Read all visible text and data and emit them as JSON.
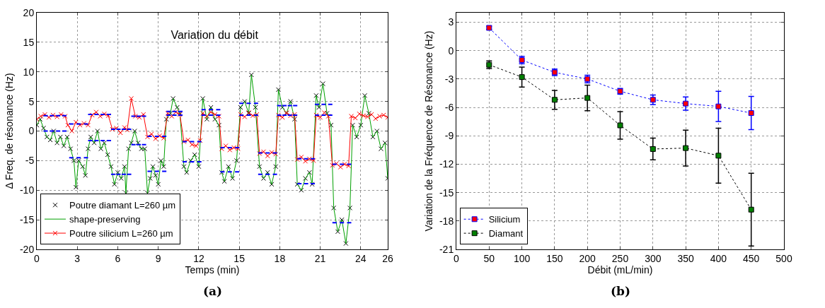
{
  "chart_data": [
    {
      "type": "scatter",
      "title": "Variation du débit",
      "xlabel": "Temps (min)",
      "ylabel": "Δ Freq. de résonance (Hz)",
      "annotations": [
        "(a)"
      ],
      "xlim": [
        0,
        26
      ],
      "xticks": [
        0,
        3,
        6,
        9,
        12,
        15,
        18,
        21,
        24,
        26
      ],
      "ylim": [
        -20,
        20
      ],
      "yticks": [
        -20,
        -15,
        -10,
        -5,
        0,
        5,
        10,
        15,
        20
      ],
      "grid": true,
      "legend": "bottom left",
      "series": [
        {
          "name": "Poutre diamant L=260 µm",
          "marker": "cross",
          "color": "#000000",
          "x": [
            0,
            0.25,
            0.5,
            0.75,
            1,
            1.25,
            1.5,
            1.75,
            2,
            2.25,
            2.5,
            2.75,
            2.9,
            3.1,
            3.4,
            3.6,
            3.8,
            4,
            4.25,
            4.5,
            4.75,
            5,
            5.25,
            5.5,
            5.75,
            6,
            6.25,
            6.5,
            6.6,
            6.8,
            7,
            7.25,
            7.5,
            7.75,
            8,
            8.2,
            8.4,
            8.6,
            8.8,
            9,
            9.2,
            9.4,
            9.6,
            9.9,
            10.1,
            10.4,
            10.6,
            10.9,
            11.1,
            11.4,
            11.7,
            12,
            12.3,
            12.6,
            12.9,
            13.2,
            13.5,
            13.7,
            13.9,
            14.2,
            14.5,
            14.8,
            15.1,
            15.4,
            15.7,
            15.9,
            16.2,
            16.5,
            16.8,
            17.1,
            17.4,
            17.7,
            17.9,
            18.2,
            18.5,
            18.8,
            19.1,
            19.3,
            19.6,
            19.9,
            20.2,
            20.4,
            20.7,
            20.9,
            21.2,
            21.5,
            21.8,
            22,
            22.3,
            22.6,
            22.9,
            23.2,
            23.4,
            23.7,
            24,
            24.3,
            24.6,
            24.9,
            25.2,
            25.5,
            25.8,
            26
          ],
          "values": [
            1,
            2,
            0.5,
            -1,
            -1.5,
            0,
            -2,
            -1,
            -2.5,
            -1,
            -3,
            -5,
            -9.5,
            -5,
            -6,
            -7.5,
            -3,
            -1,
            -2,
            0,
            -3,
            -2,
            -4,
            -6,
            -9,
            -7,
            -8,
            -6,
            -10.5,
            -3,
            -2,
            0,
            -2,
            -3,
            -3,
            -10.5,
            -8,
            -6,
            -7.5,
            -9,
            -5,
            -6,
            2,
            3,
            5.5,
            4,
            3,
            -6,
            -7,
            -5,
            -4,
            -6,
            5.5,
            2,
            4,
            2,
            1,
            -7,
            -8.5,
            -6,
            -8,
            -5,
            4,
            5,
            3,
            9.5,
            4,
            -6,
            -8,
            -7,
            -9,
            -6,
            7,
            4,
            3,
            5,
            2,
            -9,
            -10,
            -8,
            -7,
            -9,
            6,
            4,
            8,
            3,
            1,
            -13,
            -17,
            -15,
            -19,
            -13,
            1,
            -1,
            1,
            6,
            3,
            -1,
            0,
            -3,
            -2,
            -8
          ]
        },
        {
          "name": "shape-preserving",
          "type": "line",
          "marker": "none",
          "line_style": "solid",
          "color": "#00a000",
          "x": [
            0,
            0.25,
            0.5,
            0.75,
            1,
            1.25,
            1.5,
            1.75,
            2,
            2.25,
            2.5,
            2.75,
            2.9,
            3.1,
            3.4,
            3.6,
            3.8,
            4,
            4.25,
            4.5,
            4.75,
            5,
            5.25,
            5.5,
            5.75,
            6,
            6.25,
            6.5,
            6.6,
            6.8,
            7,
            7.25,
            7.5,
            7.75,
            8,
            8.2,
            8.4,
            8.6,
            8.8,
            9,
            9.2,
            9.4,
            9.6,
            9.9,
            10.1,
            10.4,
            10.6,
            10.9,
            11.1,
            11.4,
            11.7,
            12,
            12.3,
            12.6,
            12.9,
            13.2,
            13.5,
            13.7,
            13.9,
            14.2,
            14.5,
            14.8,
            15.1,
            15.4,
            15.7,
            15.9,
            16.2,
            16.5,
            16.8,
            17.1,
            17.4,
            17.7,
            17.9,
            18.2,
            18.5,
            18.8,
            19.1,
            19.3,
            19.6,
            19.9,
            20.2,
            20.4,
            20.7,
            20.9,
            21.2,
            21.5,
            21.8,
            22,
            22.3,
            22.6,
            22.9,
            23.2,
            23.4,
            23.7,
            24,
            24.3,
            24.6,
            24.9,
            25.2,
            25.5,
            25.8,
            26
          ],
          "values": [
            1,
            2,
            0.5,
            -1,
            -1.5,
            0,
            -2,
            -1,
            -2.5,
            -1,
            -3,
            -5,
            -9.5,
            -5,
            -6,
            -7.5,
            -3,
            -1,
            -2,
            0,
            -3,
            -2,
            -4,
            -6,
            -9,
            -7,
            -8,
            -6,
            -10.5,
            -3,
            -2,
            0,
            -2,
            -3,
            -3,
            -10.5,
            -8,
            -6,
            -7.5,
            -9,
            -5,
            -6,
            2,
            3,
            5.5,
            4,
            3,
            -6,
            -7,
            -5,
            -4,
            -6,
            5.5,
            2,
            4,
            2,
            1,
            -7,
            -8.5,
            -6,
            -8,
            -5,
            4,
            5,
            3,
            9.5,
            4,
            -6,
            -8,
            -7,
            -9,
            -6,
            7,
            4,
            3,
            5,
            2,
            -9,
            -10,
            -8,
            -7,
            -9,
            6,
            4,
            8,
            3,
            1,
            -13,
            -17,
            -15,
            -19,
            -13,
            1,
            -1,
            1,
            6,
            3,
            -1,
            0,
            -3,
            -2,
            -8
          ]
        },
        {
          "name": "Poutre silicium L=260 µm",
          "type": "line",
          "marker": "cross",
          "line_style": "solid",
          "color": "#ff0000",
          "x": [
            0,
            0.3,
            0.6,
            0.9,
            1.2,
            1.5,
            1.8,
            2.1,
            2.3,
            2.6,
            2.9,
            3.2,
            3.5,
            3.8,
            4.1,
            4.4,
            4.7,
            5,
            5.3,
            5.6,
            5.9,
            6.2,
            6.5,
            6.7,
            7,
            7.3,
            7.6,
            7.9,
            8.2,
            8.5,
            8.8,
            9.1,
            9.4,
            9.7,
            10,
            10.3,
            10.6,
            10.9,
            11.2,
            11.5,
            11.8,
            12.1,
            12.3,
            12.6,
            12.9,
            13.2,
            13.5,
            13.7,
            14,
            14.3,
            14.6,
            14.9,
            15.1,
            15.4,
            15.7,
            16,
            16.3,
            16.5,
            16.8,
            17.1,
            17.4,
            17.7,
            17.9,
            18.2,
            18.5,
            18.8,
            19.1,
            19.3,
            19.6,
            19.9,
            20.2,
            20.5,
            20.7,
            21,
            21.3,
            21.6,
            21.9,
            22.2,
            22.5,
            22.8,
            23.1,
            23.3,
            23.6,
            23.9,
            24.2,
            24.5,
            24.8,
            25.1,
            25.4,
            25.7,
            26
          ],
          "values": [
            2,
            2.5,
            2.8,
            2.3,
            2.7,
            2.4,
            2.8,
            2.5,
            1,
            0,
            1.5,
            1,
            1.3,
            1,
            2.7,
            3.2,
            2.5,
            2.9,
            2.6,
            0.3,
            0.5,
            -0.3,
            0.6,
            0.2,
            5.5,
            2.5,
            2.3,
            2.8,
            -1,
            -0.5,
            -1.3,
            -0.8,
            -1.2,
            3,
            2.5,
            3.2,
            2.8,
            -1.8,
            -1.5,
            -2.3,
            -2.5,
            -1.6,
            3,
            2.5,
            3.2,
            2.8,
            2.5,
            -3,
            -2.5,
            -3.2,
            -2.8,
            -3,
            2.8,
            2.4,
            3.1,
            2.6,
            2.8,
            -3.8,
            -3.5,
            -4.2,
            -3.6,
            -3.9,
            2.7,
            2.3,
            3.1,
            2.6,
            2.8,
            -4.8,
            -4.4,
            -5.1,
            -4.7,
            -5,
            2.7,
            2.3,
            3.1,
            2.5,
            -5.8,
            -5.5,
            -6.1,
            -5.6,
            -5.9,
            2.5,
            2.2,
            2.9,
            2.6,
            2.4,
            2.8,
            2.1,
            2.5,
            2.7,
            2.3
          ]
        },
        {
          "type": "line",
          "marker": "none",
          "line_style": "dashed",
          "color": "#0000ff",
          "x": [
            0.5,
            2.2
          ],
          "values": [
            0,
            0
          ]
        },
        {
          "type": "line",
          "marker": "none",
          "line_style": "dashed",
          "color": "#0000ff",
          "x": [
            0.5,
            2.2
          ],
          "values": [
            2.6,
            2.6
          ]
        },
        {
          "type": "line",
          "marker": "none",
          "line_style": "dashed",
          "color": "#0000ff",
          "x": [
            2.4,
            3.8
          ],
          "values": [
            -4.5,
            -4.5
          ]
        },
        {
          "type": "line",
          "marker": "none",
          "line_style": "dashed",
          "color": "#0000ff",
          "x": [
            2.4,
            3.8
          ],
          "values": [
            1.2,
            1.2
          ]
        },
        {
          "type": "line",
          "marker": "none",
          "line_style": "dashed",
          "color": "#0000ff",
          "x": [
            3.8,
            5.5
          ],
          "values": [
            -1.6,
            -1.6
          ]
        },
        {
          "type": "line",
          "marker": "none",
          "line_style": "dashed",
          "color": "#0000ff",
          "x": [
            3.8,
            5.5
          ],
          "values": [
            2.8,
            2.8
          ]
        },
        {
          "type": "line",
          "marker": "none",
          "line_style": "dashed",
          "color": "#0000ff",
          "x": [
            5.5,
            7
          ],
          "values": [
            -7.3,
            -7.3
          ]
        },
        {
          "type": "line",
          "marker": "none",
          "line_style": "dashed",
          "color": "#0000ff",
          "x": [
            5.5,
            7
          ],
          "values": [
            0.3,
            0.3
          ]
        },
        {
          "type": "line",
          "marker": "none",
          "line_style": "dashed",
          "color": "#0000ff",
          "x": [
            7,
            8.1
          ],
          "values": [
            -2.3,
            -2.3
          ]
        },
        {
          "type": "line",
          "marker": "none",
          "line_style": "dashed",
          "color": "#0000ff",
          "x": [
            7,
            8.1
          ],
          "values": [
            2.5,
            2.5
          ]
        },
        {
          "type": "line",
          "marker": "none",
          "line_style": "dashed",
          "color": "#0000ff",
          "x": [
            8.2,
            9.6
          ],
          "values": [
            -6.8,
            -6.8
          ]
        },
        {
          "type": "line",
          "marker": "none",
          "line_style": "dashed",
          "color": "#0000ff",
          "x": [
            8.2,
            9.6
          ],
          "values": [
            -0.9,
            -0.9
          ]
        },
        {
          "type": "line",
          "marker": "none",
          "line_style": "dashed",
          "color": "#0000ff",
          "x": [
            9.6,
            10.8
          ],
          "values": [
            3.3,
            3.3
          ]
        },
        {
          "type": "line",
          "marker": "none",
          "line_style": "dashed",
          "color": "#0000ff",
          "x": [
            9.6,
            10.8
          ],
          "values": [
            2.7,
            2.7
          ]
        },
        {
          "type": "line",
          "marker": "none",
          "line_style": "dashed",
          "color": "#0000ff",
          "x": [
            10.8,
            12.2
          ],
          "values": [
            -5.2,
            -5.2
          ]
        },
        {
          "type": "line",
          "marker": "none",
          "line_style": "dashed",
          "color": "#0000ff",
          "x": [
            10.8,
            12.2
          ],
          "values": [
            -1.8,
            -1.8
          ]
        },
        {
          "type": "line",
          "marker": "none",
          "line_style": "dashed",
          "color": "#0000ff",
          "x": [
            12.2,
            13.6
          ],
          "values": [
            3.6,
            3.6
          ]
        },
        {
          "type": "line",
          "marker": "none",
          "line_style": "dashed",
          "color": "#0000ff",
          "x": [
            12.2,
            13.6
          ],
          "values": [
            2.7,
            2.7
          ]
        },
        {
          "type": "line",
          "marker": "none",
          "line_style": "dashed",
          "color": "#0000ff",
          "x": [
            13.6,
            15
          ],
          "values": [
            -6.9,
            -6.9
          ]
        },
        {
          "type": "line",
          "marker": "none",
          "line_style": "dashed",
          "color": "#0000ff",
          "x": [
            13.6,
            15
          ],
          "values": [
            -2.8,
            -2.8
          ]
        },
        {
          "type": "line",
          "marker": "none",
          "line_style": "dashed",
          "color": "#0000ff",
          "x": [
            15,
            16.4
          ],
          "values": [
            4.7,
            4.7
          ]
        },
        {
          "type": "line",
          "marker": "none",
          "line_style": "dashed",
          "color": "#0000ff",
          "x": [
            15,
            16.4
          ],
          "values": [
            2.7,
            2.7
          ]
        },
        {
          "type": "line",
          "marker": "none",
          "line_style": "dashed",
          "color": "#0000ff",
          "x": [
            16.4,
            17.8
          ],
          "values": [
            -7.3,
            -7.3
          ]
        },
        {
          "type": "line",
          "marker": "none",
          "line_style": "dashed",
          "color": "#0000ff",
          "x": [
            16.4,
            17.8
          ],
          "values": [
            -3.7,
            -3.7
          ]
        },
        {
          "type": "line",
          "marker": "none",
          "line_style": "dashed",
          "color": "#0000ff",
          "x": [
            17.8,
            19.3
          ],
          "values": [
            4.3,
            4.3
          ]
        },
        {
          "type": "line",
          "marker": "none",
          "line_style": "dashed",
          "color": "#0000ff",
          "x": [
            17.8,
            19.3
          ],
          "values": [
            2.7,
            2.7
          ]
        },
        {
          "type": "line",
          "marker": "none",
          "line_style": "dashed",
          "color": "#0000ff",
          "x": [
            19.3,
            20.6
          ],
          "values": [
            -8.9,
            -8.9
          ]
        },
        {
          "type": "line",
          "marker": "none",
          "line_style": "dashed",
          "color": "#0000ff",
          "x": [
            19.3,
            20.6
          ],
          "values": [
            -4.7,
            -4.7
          ]
        },
        {
          "type": "line",
          "marker": "none",
          "line_style": "dashed",
          "color": "#0000ff",
          "x": [
            20.6,
            21.9
          ],
          "values": [
            4.5,
            4.5
          ]
        },
        {
          "type": "line",
          "marker": "none",
          "line_style": "dashed",
          "color": "#0000ff",
          "x": [
            20.6,
            21.9
          ],
          "values": [
            2.7,
            2.7
          ]
        },
        {
          "type": "line",
          "marker": "none",
          "line_style": "dashed",
          "color": "#0000ff",
          "x": [
            21.9,
            23.3
          ],
          "values": [
            -15.5,
            -15.5
          ]
        },
        {
          "type": "line",
          "marker": "none",
          "line_style": "dashed",
          "color": "#0000ff",
          "x": [
            21.9,
            23.3
          ],
          "values": [
            -5.6,
            -5.6
          ]
        }
      ]
    },
    {
      "type": "line",
      "xlabel": "Débit (mL/min)",
      "ylabel": "Variation de la Fréquence de Résonance (Hz)",
      "annotations": [
        "(b)"
      ],
      "x": [
        50,
        100,
        150,
        200,
        250,
        300,
        350,
        400,
        450
      ],
      "xlim": [
        0,
        500
      ],
      "xticks": [
        0,
        50,
        100,
        150,
        200,
        250,
        300,
        350,
        400,
        450,
        500
      ],
      "ylim": [
        -21,
        4
      ],
      "yticks": [
        -21,
        -18,
        -15,
        -12,
        -9,
        -6,
        -3,
        0,
        3
      ],
      "grid": true,
      "legend": "bottom left",
      "marker": "square",
      "line_style": "dotted",
      "series": [
        {
          "name": "Silicium",
          "color": "#0000ff",
          "colors": [
            "#ff0000",
            "#ff0000",
            "#ff0000",
            "#ff0000",
            "#ff0000",
            "#ff0000",
            "#ff0000",
            "#ff0000",
            "#ff0000"
          ],
          "values": [
            2.4,
            -1,
            -2.3,
            -3,
            -4.3,
            -5.2,
            -5.6,
            -5.9,
            -6.6
          ],
          "errors": [
            0.2,
            0.4,
            0.35,
            0.4,
            0.3,
            0.5,
            0.7,
            1.6,
            1.75
          ]
        },
        {
          "name": "Diamant",
          "color": "#000000",
          "colors": [
            "#008000",
            "#008000",
            "#008000",
            "#008000",
            "#008000",
            "#008000",
            "#008000",
            "#008000",
            "#008000"
          ],
          "values": [
            -1.5,
            -2.8,
            -5.2,
            -5,
            -7.9,
            -10.4,
            -10.3,
            -11.1,
            -16.8
          ],
          "errors": [
            0.4,
            1.05,
            1,
            1.35,
            1.45,
            1.15,
            1.9,
            2.9,
            3.85
          ]
        }
      ]
    }
  ]
}
